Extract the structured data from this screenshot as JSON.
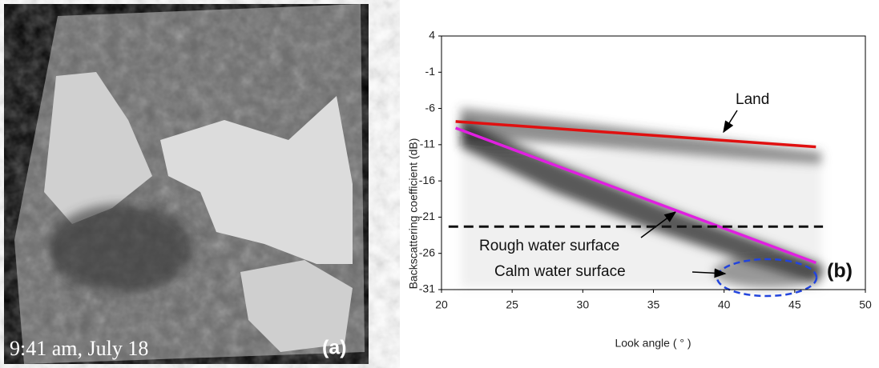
{
  "panel_a": {
    "caption": "9:41 am, July 18",
    "label": "(a)"
  },
  "chart_data": {
    "type": "line",
    "xlabel": "Look angle ( ° )",
    "ylabel": "Backscattering coefficient (dB)",
    "xlim": [
      20,
      50
    ],
    "xticks": [
      20,
      25,
      30,
      35,
      40,
      45,
      50
    ],
    "ylim": [
      -31,
      4
    ],
    "yticks": [
      -31,
      -26,
      -21,
      -16,
      -11,
      -6,
      -1,
      4
    ],
    "series": [
      {
        "color": "#e01010",
        "x": [
          21,
          46.5
        ],
        "values": [
          -7.8,
          -11.3
        ]
      },
      {
        "color": "#e020e0",
        "x": [
          21,
          46.5
        ],
        "values": [
          -8.7,
          -27.3
        ]
      },
      {
        "color": "#111111",
        "dashed": true,
        "x": [
          20.5,
          47
        ],
        "values": [
          -22.3,
          -22.3
        ]
      }
    ],
    "annotations": {
      "land": "Land",
      "rough": "Rough water surface",
      "calm": "Calm water surface",
      "panel": "(b)"
    }
  }
}
